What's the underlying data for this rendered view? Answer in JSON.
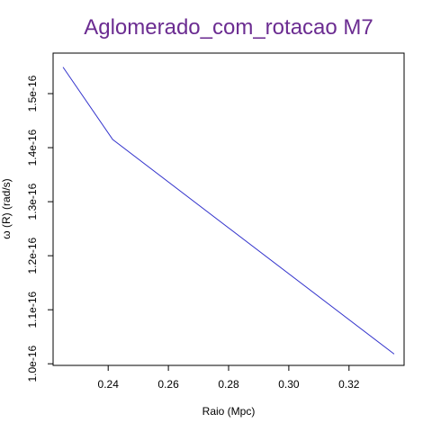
{
  "chart_data": {
    "type": "line",
    "title": "Aglomerado_com_rotacao M7",
    "xlabel": "Raio (Mpc)",
    "ylabel": "ω (R) (rad/s)",
    "x": [
      0.225,
      0.2415,
      0.335
    ],
    "series": [
      {
        "values": [
          1.549e-16,
          1.415e-16,
          1.018e-16
        ]
      }
    ],
    "xlim": [
      0.2217,
      0.3383
    ],
    "ylim": [
      9.97e-17,
      1.575e-16
    ],
    "xticks": [
      0.24,
      0.26,
      0.28,
      0.3,
      0.32
    ],
    "xtick_labels": [
      "0.24",
      "0.26",
      "0.28",
      "0.30",
      "0.32"
    ],
    "yticks": [
      1e-16,
      1.1e-16,
      1.2e-16,
      1.3e-16,
      1.4e-16,
      1.5e-16
    ],
    "ytick_labels": [
      "1.0e-16",
      "1.1e-16",
      "1.2e-16",
      "1.3e-16",
      "1.4e-16",
      "1.5e-16"
    ],
    "grid": false,
    "colors": {
      "line": "#3333cc",
      "title": "#6b2c91",
      "axis": "#000000"
    }
  }
}
